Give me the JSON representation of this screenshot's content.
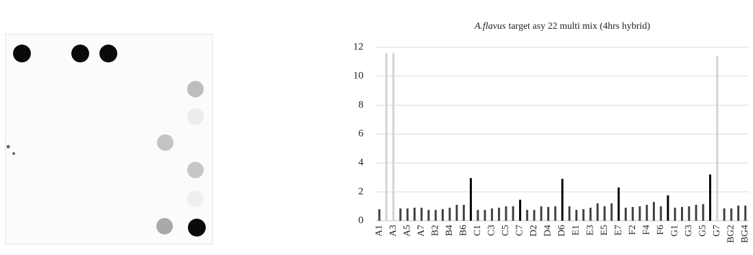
{
  "chart_data": {
    "type": "bar",
    "title": {
      "species": "A.flavus",
      "text": "target asy 22 multi mix (4hrs hybrid)"
    },
    "categories": [
      "A1",
      null,
      "A3",
      null,
      "A5",
      null,
      "A7",
      null,
      "B2",
      null,
      "B4",
      null,
      "B6",
      null,
      "C1",
      null,
      "C3",
      null,
      "C5",
      null,
      "C7",
      null,
      "D2",
      null,
      "D4",
      null,
      "D6",
      null,
      "E1",
      null,
      "E3",
      null,
      "E5",
      null,
      "E7",
      null,
      "F2",
      null,
      "F4",
      null,
      "F6",
      null,
      "G1",
      null,
      "G3",
      null,
      "G5",
      null,
      "G7",
      null,
      "BG2",
      null,
      "BG4"
    ],
    "values": [
      0.8,
      11.6,
      11.6,
      0.85,
      0.85,
      0.9,
      0.9,
      0.75,
      0.75,
      0.8,
      0.9,
      1.1,
      1.1,
      2.95,
      0.75,
      0.75,
      0.85,
      0.9,
      1.0,
      1.0,
      1.45,
      0.75,
      0.75,
      1.0,
      0.95,
      1.0,
      2.9,
      1.0,
      0.75,
      0.8,
      0.9,
      1.2,
      1.0,
      1.2,
      2.3,
      0.9,
      0.95,
      1.0,
      1.1,
      1.3,
      1.0,
      1.75,
      0.9,
      0.95,
      1.0,
      1.1,
      1.15,
      3.2,
      11.4,
      0.85,
      0.85,
      1.05,
      1.05
    ],
    "colors": [
      "#404040",
      "#d3d3d3",
      "#d3d3d3",
      "#404040",
      "#404040",
      "#404040",
      "#404040",
      "#404040",
      "#404040",
      "#404040",
      "#404040",
      "#404040",
      "#404040",
      "#000000",
      "#404040",
      "#404040",
      "#404040",
      "#404040",
      "#404040",
      "#404040",
      "#000000",
      "#404040",
      "#404040",
      "#404040",
      "#404040",
      "#404040",
      "#000000",
      "#404040",
      "#404040",
      "#404040",
      "#404040",
      "#404040",
      "#404040",
      "#404040",
      "#000000",
      "#404040",
      "#404040",
      "#404040",
      "#404040",
      "#404040",
      "#404040",
      "#000000",
      "#404040",
      "#404040",
      "#404040",
      "#404040",
      "#404040",
      "#000000",
      "#d3d3d3",
      "#404040",
      "#404040",
      "#404040",
      "#404040"
    ],
    "ylim": [
      0,
      12
    ],
    "yticks": [
      0,
      2,
      4,
      6,
      8,
      10,
      12
    ],
    "grid": true
  }
}
